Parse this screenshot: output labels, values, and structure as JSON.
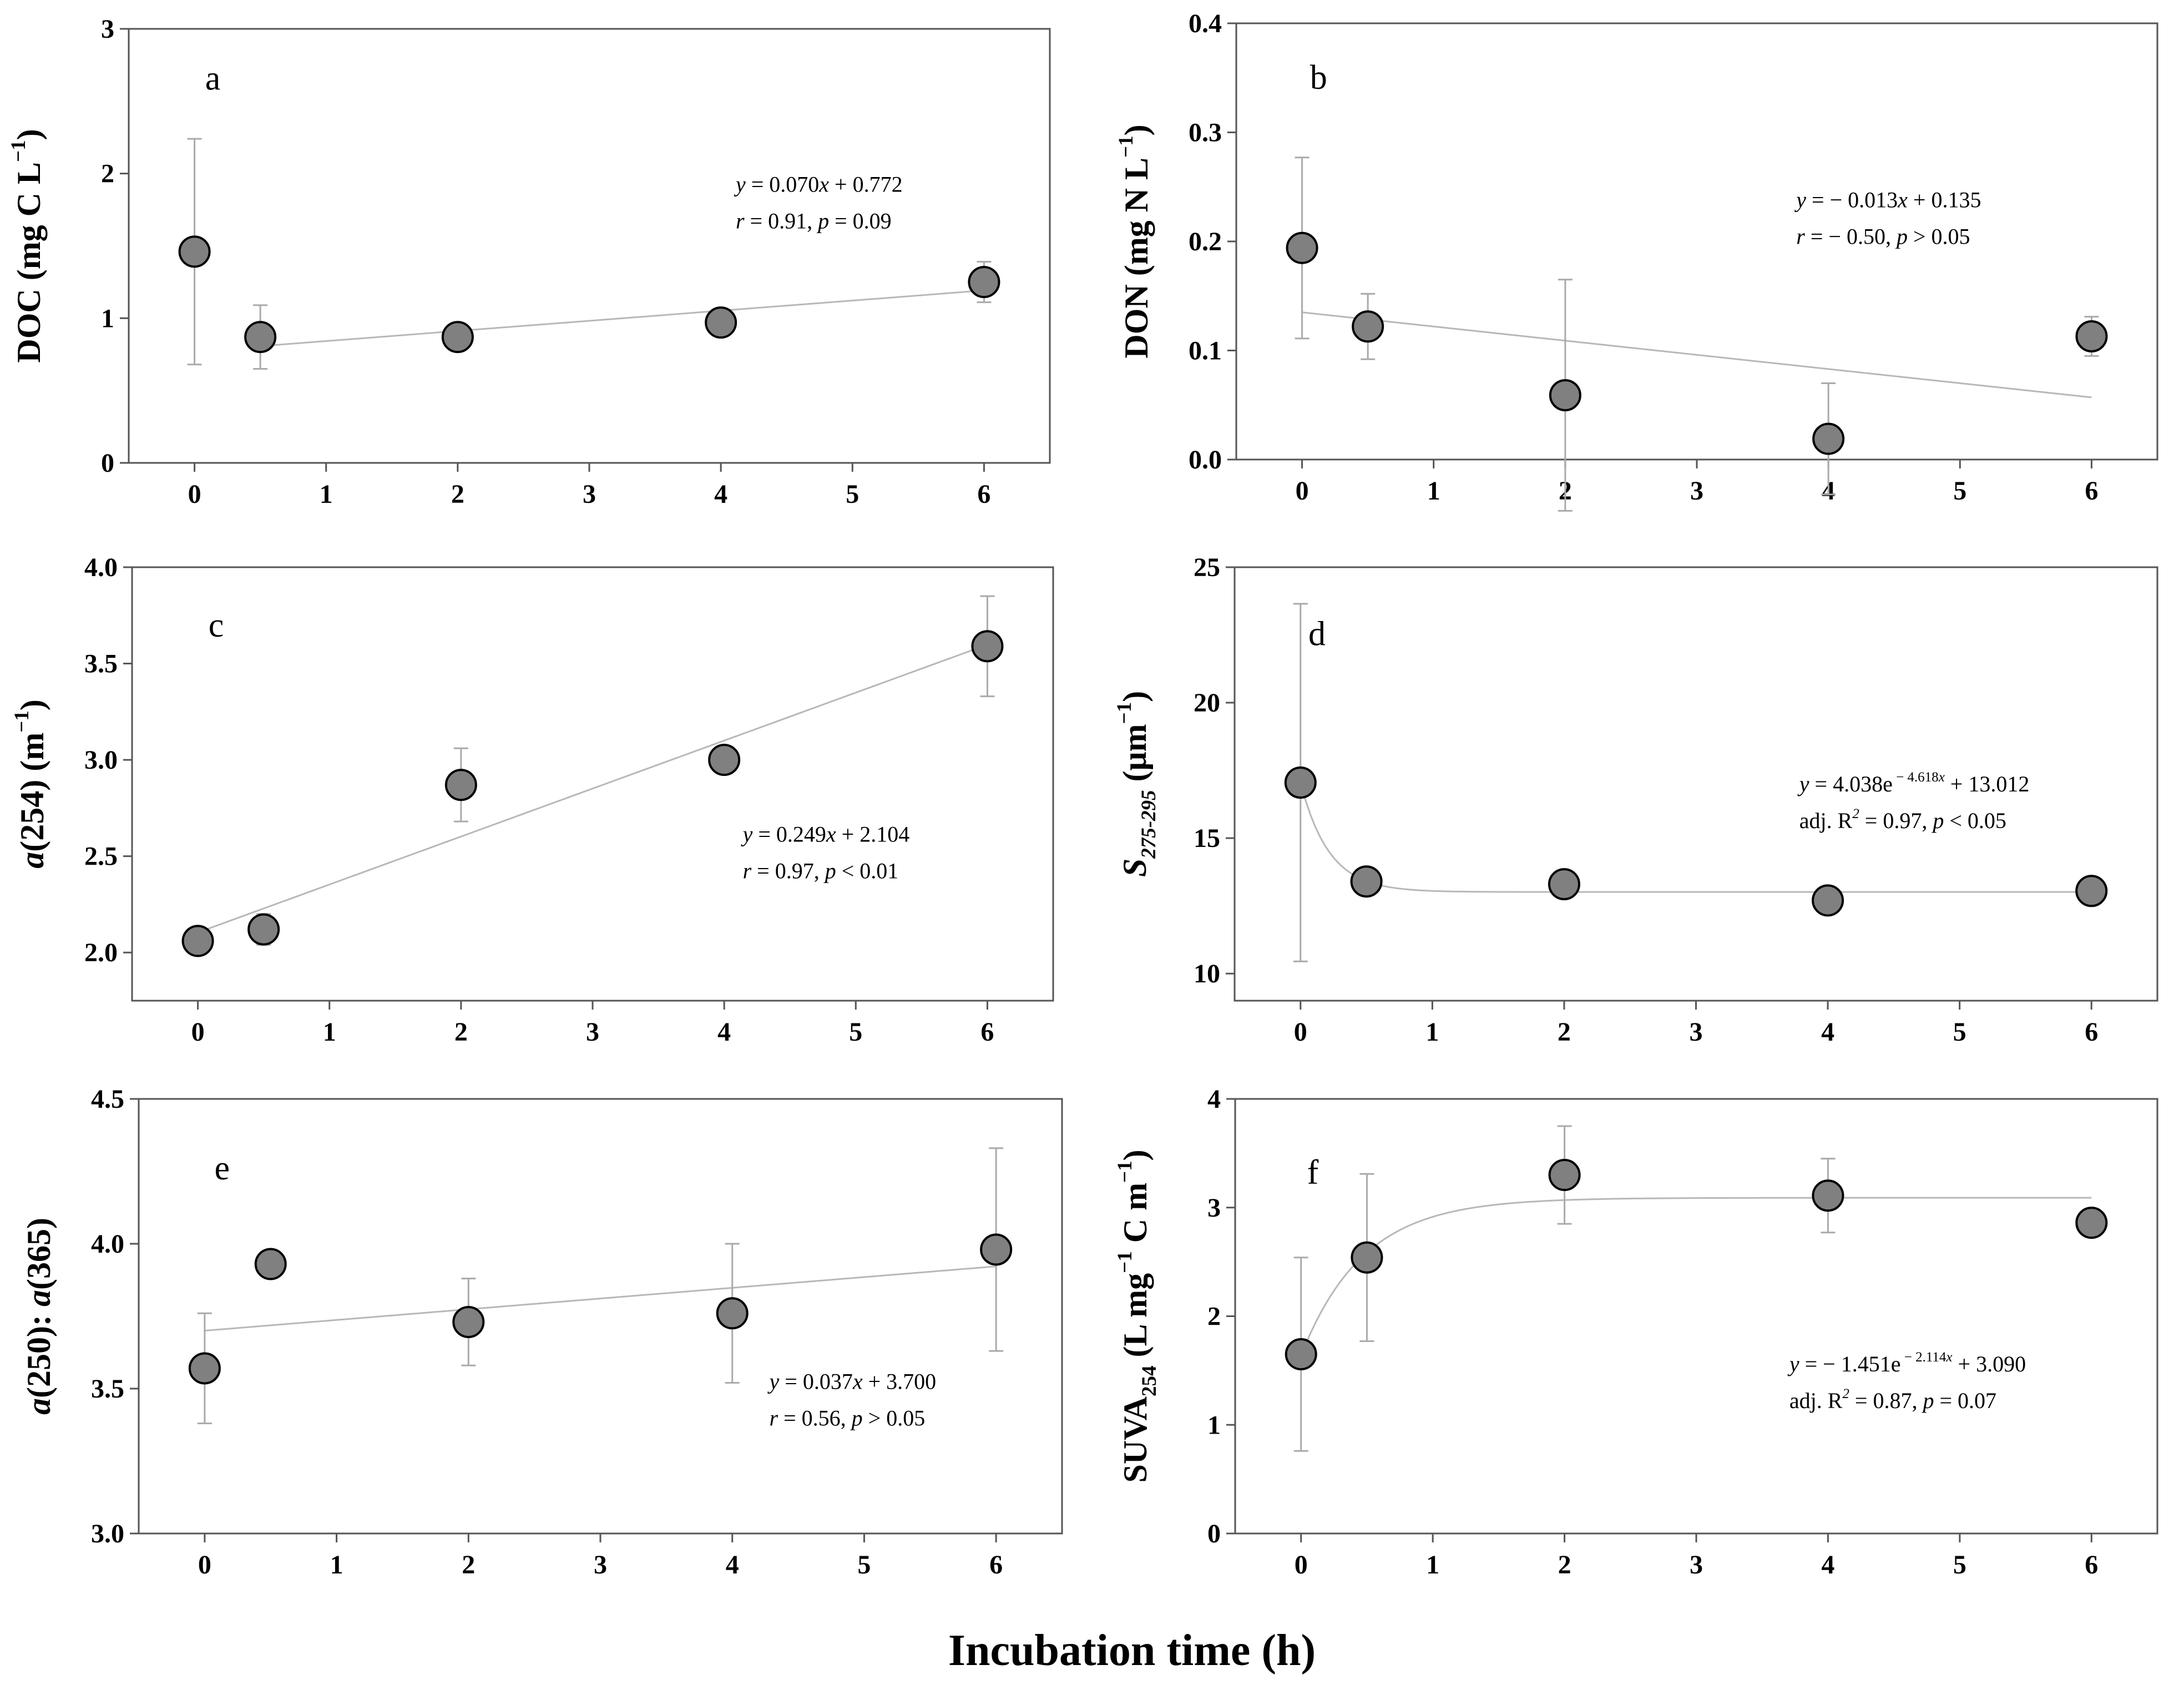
{
  "figure": {
    "x_axis_title": "Incubation time (h)"
  },
  "chart_data": [
    {
      "type": "scatter",
      "panel": "a",
      "ylabel": "DOC (mg C L−1)",
      "ylabel_parts": [
        {
          "t": "DOC (mg C L"
        },
        {
          "t": "−1",
          "sup": true
        },
        {
          "t": ")"
        }
      ],
      "xlim": [
        -0.5,
        6.5
      ],
      "ylim": [
        0,
        3
      ],
      "xticks": [
        0,
        1,
        2,
        3,
        4,
        5,
        6
      ],
      "yticks": [
        0,
        1,
        2,
        3
      ],
      "ytick_labels": [
        "0",
        "1",
        "2",
        "3"
      ],
      "x": [
        0,
        0.5,
        2,
        4,
        6
      ],
      "y": [
        1.46,
        0.87,
        0.87,
        0.97,
        1.25
      ],
      "err": [
        0.78,
        0.22,
        0.0,
        0.0,
        0.14
      ],
      "fit": {
        "kind": "linear",
        "slope": 0.07,
        "intercept": 0.772,
        "x_range": [
          0.5,
          6
        ]
      },
      "equation_lines": [
        [
          {
            "t": "y",
            "i": true
          },
          {
            "t": " = 0.070"
          },
          {
            "t": "x",
            "i": true
          },
          {
            "t": " + 0.772"
          }
        ],
        [
          {
            "t": "r",
            "i": true
          },
          {
            "t": " = 0.91, "
          },
          {
            "t": "p",
            "i": true
          },
          {
            "t": " = 0.09"
          }
        ]
      ]
    },
    {
      "type": "scatter",
      "panel": "b",
      "ylabel": "DON (mg N L−1)",
      "ylabel_parts": [
        {
          "t": "DON (mg N L"
        },
        {
          "t": "−1",
          "sup": true
        },
        {
          "t": ")"
        }
      ],
      "xlim": [
        -0.5,
        6.5
      ],
      "ylim": [
        0,
        0.4
      ],
      "xticks": [
        0,
        1,
        2,
        3,
        4,
        5,
        6
      ],
      "yticks": [
        0,
        0.1,
        0.2,
        0.3,
        0.4
      ],
      "ytick_labels": [
        "0.0",
        "0.1",
        "0.2",
        "0.3",
        "0.4"
      ],
      "x": [
        0,
        0.5,
        2,
        4,
        6
      ],
      "y": [
        0.194,
        0.122,
        0.059,
        0.019,
        0.113
      ],
      "err": [
        0.083,
        0.03,
        0.106,
        0.051,
        0.018
      ],
      "fit": {
        "kind": "linear",
        "slope": -0.013,
        "intercept": 0.135,
        "x_range": [
          0,
          6
        ]
      },
      "equation_lines": [
        [
          {
            "t": "y",
            "i": true
          },
          {
            "t": " = − 0.013"
          },
          {
            "t": "x",
            "i": true
          },
          {
            "t": " + 0.135"
          }
        ],
        [
          {
            "t": "r",
            "i": true
          },
          {
            "t": " = − 0.50, "
          },
          {
            "t": "p",
            "i": true
          },
          {
            "t": " > 0.05"
          }
        ]
      ]
    },
    {
      "type": "scatter",
      "panel": "c",
      "ylabel": "a(254) (m−1)",
      "ylabel_parts": [
        {
          "t": "a",
          "i": true
        },
        {
          "t": "(254) (m"
        },
        {
          "t": "−1",
          "sup": true
        },
        {
          "t": ")"
        }
      ],
      "xlim": [
        -0.5,
        6.5
      ],
      "ylim": [
        1.75,
        4.0
      ],
      "xticks": [
        0,
        1,
        2,
        3,
        4,
        5,
        6
      ],
      "yticks": [
        2.0,
        2.5,
        3.0,
        3.5,
        4.0
      ],
      "ytick_labels": [
        "2.0",
        "2.5",
        "3.0",
        "3.5",
        "4.0"
      ],
      "x": [
        0,
        0.5,
        2,
        4,
        6
      ],
      "y": [
        2.06,
        2.12,
        2.87,
        3.0,
        3.59
      ],
      "err": [
        0.0,
        0.08,
        0.19,
        0.0,
        0.26
      ],
      "fit": {
        "kind": "linear",
        "slope": 0.249,
        "intercept": 2.104,
        "x_range": [
          0,
          6
        ]
      },
      "equation_lines": [
        [
          {
            "t": "y",
            "i": true
          },
          {
            "t": " = 0.249"
          },
          {
            "t": "x",
            "i": true
          },
          {
            "t": " + 2.104"
          }
        ],
        [
          {
            "t": "r",
            "i": true
          },
          {
            "t": " = 0.97, "
          },
          {
            "t": "p",
            "i": true
          },
          {
            "t": " < 0.01"
          }
        ]
      ]
    },
    {
      "type": "scatter",
      "panel": "d",
      "ylabel": "S275-295 (μm−1)",
      "ylabel_parts": [
        {
          "t": "S",
          "i": true
        },
        {
          "t": "275-295",
          "sub": true,
          "i": true
        },
        {
          "t": " (μm"
        },
        {
          "t": "−1",
          "sup": true
        },
        {
          "t": ")"
        }
      ],
      "xlim": [
        -0.5,
        6.5
      ],
      "ylim": [
        9,
        25
      ],
      "xticks": [
        0,
        1,
        2,
        3,
        4,
        5,
        6
      ],
      "yticks": [
        10,
        15,
        20,
        25
      ],
      "ytick_labels": [
        "10",
        "15",
        "20",
        "25"
      ],
      "x": [
        0,
        0.5,
        2,
        4,
        6
      ],
      "y": [
        17.05,
        13.4,
        13.3,
        12.7,
        13.05
      ],
      "err": [
        6.6,
        0.0,
        0.0,
        0.0,
        0.0
      ],
      "fit": {
        "kind": "exponential",
        "a": 4.038,
        "b": -4.618,
        "c": 13.012,
        "x_range": [
          0,
          6
        ]
      },
      "equation_lines": [
        [
          {
            "t": "y",
            "i": true
          },
          {
            "t": " = 4.038e"
          },
          {
            "t": " − 4.618",
            "sup": true
          },
          {
            "t": "x",
            "sup": true,
            "i": true
          },
          {
            "t": " + 13.012"
          }
        ],
        [
          {
            "t": "adj. R"
          },
          {
            "t": "2",
            "sup": true,
            "i": true
          },
          {
            "t": " = 0.97, "
          },
          {
            "t": "p",
            "i": true
          },
          {
            "t": " < 0.05"
          }
        ]
      ]
    },
    {
      "type": "scatter",
      "panel": "e",
      "ylabel": "a(250): a(365)",
      "ylabel_parts": [
        {
          "t": "a",
          "i": true
        },
        {
          "t": "(250): "
        },
        {
          "t": "a",
          "i": true
        },
        {
          "t": "(365)"
        }
      ],
      "xlim": [
        -0.5,
        6.5
      ],
      "ylim": [
        3.0,
        4.5
      ],
      "xticks": [
        0,
        1,
        2,
        3,
        4,
        5,
        6
      ],
      "yticks": [
        3.0,
        3.5,
        4.0,
        4.5
      ],
      "ytick_labels": [
        "3.0",
        "3.5",
        "4.0",
        "4.5"
      ],
      "x": [
        0,
        0.5,
        2,
        4,
        6
      ],
      "y": [
        3.57,
        3.93,
        3.73,
        3.76,
        3.98
      ],
      "err": [
        0.19,
        0.0,
        0.15,
        0.24,
        0.35
      ],
      "fit": {
        "kind": "linear",
        "slope": 0.037,
        "intercept": 3.7,
        "x_range": [
          0,
          6
        ]
      },
      "equation_lines": [
        [
          {
            "t": "y",
            "i": true
          },
          {
            "t": " = 0.037"
          },
          {
            "t": "x",
            "i": true
          },
          {
            "t": " + 3.700"
          }
        ],
        [
          {
            "t": "r",
            "i": true
          },
          {
            "t": " = 0.56, "
          },
          {
            "t": "p",
            "i": true
          },
          {
            "t": " > 0.05"
          }
        ]
      ]
    },
    {
      "type": "scatter",
      "panel": "f",
      "ylabel": "SUVA254 (L mg−1 C m−1)",
      "ylabel_parts": [
        {
          "t": "SUVA"
        },
        {
          "t": "254",
          "sub": true
        },
        {
          "t": " (L mg"
        },
        {
          "t": "−1",
          "sup": true
        },
        {
          "t": " C m"
        },
        {
          "t": "−1",
          "sup": true
        },
        {
          "t": ")"
        }
      ],
      "xlim": [
        -0.5,
        6.5
      ],
      "ylim": [
        0,
        4
      ],
      "xticks": [
        0,
        1,
        2,
        3,
        4,
        5,
        6
      ],
      "yticks": [
        0,
        1,
        2,
        3,
        4
      ],
      "ytick_labels": [
        "0",
        "1",
        "2",
        "3",
        "4"
      ],
      "x": [
        0,
        0.5,
        2,
        4,
        6
      ],
      "y": [
        1.65,
        2.54,
        3.3,
        3.11,
        2.86
      ],
      "err": [
        0.89,
        0.77,
        0.45,
        0.34,
        0.0
      ],
      "fit": {
        "kind": "exponential",
        "a": -1.451,
        "b": -2.114,
        "c": 3.09,
        "x_range": [
          0,
          6
        ]
      },
      "equation_lines": [
        [
          {
            "t": "y",
            "i": true
          },
          {
            "t": " = − 1.451e"
          },
          {
            "t": " − 2.114",
            "sup": true
          },
          {
            "t": "x",
            "sup": true,
            "i": true
          },
          {
            "t": " + 3.090"
          }
        ],
        [
          {
            "t": "adj. R"
          },
          {
            "t": "2",
            "sup": true,
            "i": true
          },
          {
            "t": " = 0.87, "
          },
          {
            "t": "p",
            "i": true
          },
          {
            "t": " = 0.07"
          }
        ]
      ]
    }
  ]
}
